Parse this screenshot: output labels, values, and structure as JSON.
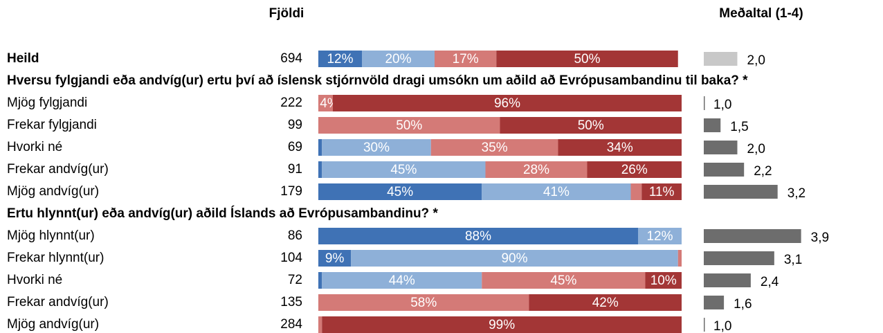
{
  "columns": {
    "count_title": "Fjöldi",
    "mean_title": "Meðaltal (1-4)"
  },
  "chart_data": [
    {
      "type": "stacked_bar_100",
      "categories": [
        "Heild"
      ],
      "counts": [
        694
      ],
      "xlim": [
        0,
        100
      ],
      "series": [
        {
          "color": "#3f72b5",
          "values": [
            12
          ],
          "value_labels": [
            "12%"
          ]
        },
        {
          "color": "#8eb0d8",
          "values": [
            20
          ],
          "value_labels": [
            "20%"
          ]
        },
        {
          "color": "#d47a77",
          "values": [
            17
          ],
          "value_labels": [
            "17%"
          ]
        },
        {
          "color": "#a33636",
          "values": [
            50
          ],
          "value_labels": [
            "50%"
          ]
        }
      ],
      "means": {
        "color": "#c8c8c8",
        "lim": [
          1,
          4
        ],
        "values": [
          2.0
        ],
        "value_labels": [
          "2,0"
        ]
      }
    },
    {
      "type": "stacked_bar_100",
      "title": "Hversu fylgjandi eða andvíg(ur) ertu því að íslensk stjórnvöld dragi umsókn um aðild að Evrópusambandinu til baka? *",
      "categories": [
        "Mjög fylgjandi",
        "Frekar fylgjandi",
        "Hvorki né",
        "Frekar andvíg(ur)",
        "Mjög andvíg(ur)"
      ],
      "counts": [
        222,
        99,
        69,
        91,
        179
      ],
      "xlim": [
        0,
        100
      ],
      "series": [
        {
          "color": "#3f72b5",
          "values": [
            0,
            0,
            1,
            1,
            45
          ],
          "value_labels": [
            null,
            null,
            null,
            null,
            "45%"
          ]
        },
        {
          "color": "#8eb0d8",
          "values": [
            0,
            0,
            30,
            45,
            41
          ],
          "value_labels": [
            null,
            null,
            "30%",
            "45%",
            "41%"
          ]
        },
        {
          "color": "#d47a77",
          "values": [
            4,
            50,
            35,
            28,
            3
          ],
          "value_labels": [
            "4%",
            "50%",
            "35%",
            "28%",
            null
          ]
        },
        {
          "color": "#a33636",
          "values": [
            96,
            50,
            34,
            26,
            11
          ],
          "value_labels": [
            "96%",
            "50%",
            "34%",
            "26%",
            "11%"
          ]
        }
      ],
      "means": {
        "color": "#6d6d6d",
        "lim": [
          1,
          4
        ],
        "values": [
          1.0,
          1.5,
          2.0,
          2.2,
          3.2
        ],
        "value_labels": [
          "1,0",
          "1,5",
          "2,0",
          "2,2",
          "3,2"
        ]
      }
    },
    {
      "type": "stacked_bar_100",
      "title": "Ertu hlynnt(ur) eða andvíg(ur) aðild Íslands að Evrópusambandinu? *",
      "categories": [
        "Mjög hlynnt(ur)",
        "Frekar hlynnt(ur)",
        "Hvorki né",
        "Frekar andvíg(ur)",
        "Mjög andvíg(ur)"
      ],
      "counts": [
        86,
        104,
        72,
        135,
        284
      ],
      "xlim": [
        0,
        100
      ],
      "series": [
        {
          "color": "#3f72b5",
          "values": [
            88,
            9,
            1,
            0,
            0
          ],
          "value_labels": [
            "88%",
            "9%",
            null,
            null,
            null
          ]
        },
        {
          "color": "#8eb0d8",
          "values": [
            12,
            90,
            44,
            0,
            0
          ],
          "value_labels": [
            "12%",
            "90%",
            "44%",
            null,
            null
          ]
        },
        {
          "color": "#d47a77",
          "values": [
            0,
            1,
            45,
            58,
            1
          ],
          "value_labels": [
            null,
            null,
            "45%",
            "58%",
            null
          ]
        },
        {
          "color": "#a33636",
          "values": [
            0,
            0,
            10,
            42,
            99
          ],
          "value_labels": [
            null,
            null,
            "10%",
            "42%",
            "99%"
          ]
        }
      ],
      "means": {
        "color": "#6d6d6d",
        "lim": [
          1,
          4
        ],
        "values": [
          3.9,
          3.1,
          2.4,
          1.6,
          1.0
        ],
        "value_labels": [
          "3,9",
          "3,1",
          "2,4",
          "1,6",
          "1,0"
        ]
      }
    }
  ]
}
